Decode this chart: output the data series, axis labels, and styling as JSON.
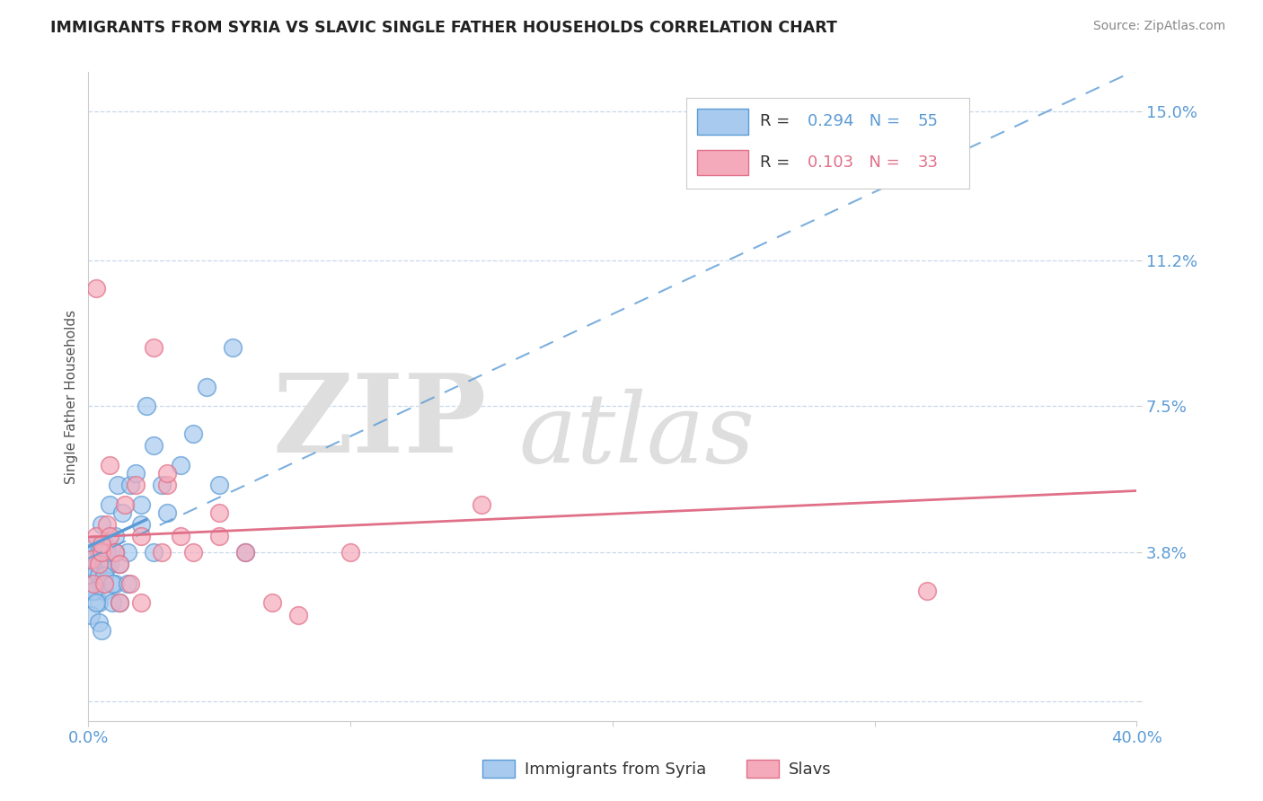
{
  "title": "IMMIGRANTS FROM SYRIA VS SLAVIC SINGLE FATHER HOUSEHOLDS CORRELATION CHART",
  "source": "Source: ZipAtlas.com",
  "ylabel": "Single Father Households",
  "xlim": [
    0.0,
    0.4
  ],
  "ylim": [
    -0.005,
    0.16
  ],
  "yticks": [
    0.0,
    0.038,
    0.075,
    0.112,
    0.15
  ],
  "ytick_labels": [
    "",
    "3.8%",
    "7.5%",
    "11.2%",
    "15.0%"
  ],
  "xticks": [
    0.0,
    0.1,
    0.2,
    0.3,
    0.4
  ],
  "xtick_labels": [
    "0.0%",
    "",
    "",
    "",
    "40.0%"
  ],
  "R1": 0.294,
  "N1": 55,
  "R2": 0.103,
  "N2": 33,
  "blue_face": "#A8CAEE",
  "blue_edge": "#5B9BD5",
  "pink_face": "#F5AABB",
  "pink_edge": "#E07088",
  "blue_line": "#5B9BD5",
  "pink_line": "#E07088",
  "grid_color": "#C8D8EC",
  "axis_color": "#CCCCCC",
  "tick_color": "#5B9BD5",
  "title_color": "#222222",
  "source_color": "#888888",
  "syria_x": [
    0.001,
    0.001,
    0.001,
    0.002,
    0.002,
    0.002,
    0.003,
    0.003,
    0.003,
    0.004,
    0.004,
    0.004,
    0.005,
    0.005,
    0.005,
    0.006,
    0.006,
    0.006,
    0.007,
    0.007,
    0.008,
    0.008,
    0.009,
    0.01,
    0.01,
    0.011,
    0.012,
    0.013,
    0.015,
    0.016,
    0.018,
    0.02,
    0.022,
    0.025,
    0.028,
    0.03,
    0.035,
    0.04,
    0.045,
    0.05,
    0.055,
    0.06,
    0.001,
    0.002,
    0.003,
    0.004,
    0.005,
    0.006,
    0.007,
    0.009,
    0.01,
    0.012,
    0.015,
    0.02,
    0.025
  ],
  "syria_y": [
    0.036,
    0.032,
    0.028,
    0.04,
    0.038,
    0.03,
    0.035,
    0.028,
    0.033,
    0.038,
    0.032,
    0.025,
    0.045,
    0.03,
    0.038,
    0.04,
    0.028,
    0.035,
    0.038,
    0.034,
    0.05,
    0.035,
    0.025,
    0.042,
    0.03,
    0.055,
    0.035,
    0.048,
    0.038,
    0.055,
    0.058,
    0.05,
    0.075,
    0.065,
    0.055,
    0.048,
    0.06,
    0.068,
    0.08,
    0.055,
    0.09,
    0.038,
    0.022,
    0.028,
    0.025,
    0.02,
    0.018,
    0.032,
    0.038,
    0.03,
    0.038,
    0.025,
    0.03,
    0.045,
    0.038
  ],
  "slavs_x": [
    0.001,
    0.002,
    0.003,
    0.004,
    0.005,
    0.006,
    0.007,
    0.008,
    0.01,
    0.012,
    0.014,
    0.016,
    0.018,
    0.02,
    0.025,
    0.028,
    0.03,
    0.035,
    0.04,
    0.05,
    0.06,
    0.07,
    0.003,
    0.005,
    0.008,
    0.012,
    0.02,
    0.03,
    0.05,
    0.32,
    0.08,
    0.1,
    0.15
  ],
  "slavs_y": [
    0.036,
    0.03,
    0.042,
    0.035,
    0.038,
    0.03,
    0.045,
    0.042,
    0.038,
    0.035,
    0.05,
    0.03,
    0.055,
    0.042,
    0.09,
    0.038,
    0.055,
    0.042,
    0.038,
    0.048,
    0.038,
    0.025,
    0.105,
    0.04,
    0.06,
    0.025,
    0.025,
    0.058,
    0.042,
    0.028,
    0.022,
    0.038,
    0.05
  ]
}
